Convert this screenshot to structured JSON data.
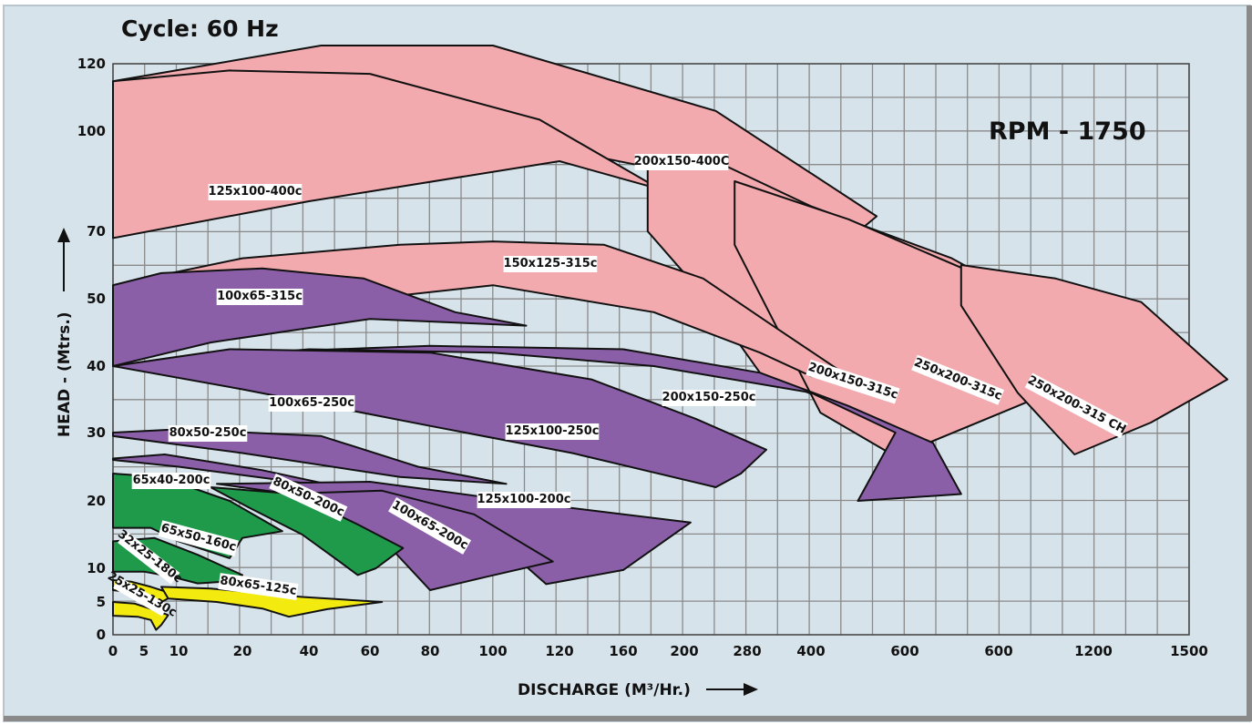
{
  "chart_data": {
    "type": "area",
    "title": "Cycle: 60 Hz",
    "annotation": "RPM - 1750",
    "xlabel": "DISCHARGE (M³/Hr.)",
    "ylabel": "HEAD - (Mtrs.)",
    "x_ticks": [
      "0",
      "5",
      "10",
      "20",
      "40",
      "60",
      "80",
      "100",
      "120",
      "160",
      "200",
      "280",
      "400",
      "600",
      "600",
      "1200",
      "1500"
    ],
    "y_ticks": [
      "0",
      "5",
      "10",
      "20",
      "30",
      "40",
      "50",
      "70",
      "100",
      "120"
    ],
    "grid": true,
    "scale_note": "non-uniform axes; data values expressed in tick-index units (x: index into x_ticks, y: index into y_ticks)",
    "colors": {
      "pink": "#f2aaae",
      "purple": "#8a5fa8",
      "green": "#1e9a4a",
      "yellow": "#f3ea10",
      "background": "#d7e3ea",
      "grid": "#8a8a8a"
    },
    "series": [
      {
        "name": "200x150-400C",
        "color": "pink",
        "points": [
          [
            0,
            8.74
          ],
          [
            4.2,
            9.27
          ],
          [
            7,
            9.27
          ],
          [
            10.5,
            8.3
          ],
          [
            12.7,
            7.15
          ],
          [
            12.1,
            6.53
          ],
          [
            9.5,
            7.63
          ],
          [
            7,
            7.95
          ],
          [
            3,
            7.85
          ],
          [
            0,
            7.1
          ]
        ]
      },
      {
        "name": "125x100-400c",
        "color": "pink",
        "points": [
          [
            0,
            8.74
          ],
          [
            2.8,
            8.9
          ],
          [
            5,
            8.85
          ],
          [
            7.7,
            8.17
          ],
          [
            9.6,
            7.42
          ],
          [
            8,
            7.7
          ],
          [
            4,
            7.3
          ],
          [
            0,
            6.9
          ]
        ]
      },
      {
        "name": "200x150-315c",
        "color": "pink",
        "points": [
          [
            9.4,
            7.7
          ],
          [
            10.5,
            7.7
          ],
          [
            12,
            7.25
          ],
          [
            13.5,
            6.6
          ],
          [
            14.8,
            5.6
          ],
          [
            13.5,
            5.1
          ],
          [
            12.4,
            4.35
          ],
          [
            11.2,
            4.9
          ],
          [
            10.4,
            5.95
          ],
          [
            9.4,
            7.0
          ]
        ]
      },
      {
        "name": "250x200-315c",
        "color": "pink",
        "points": [
          [
            10.8,
            7.5
          ],
          [
            12.4,
            7.12
          ],
          [
            14.2,
            6.1
          ],
          [
            15.5,
            5.18
          ],
          [
            14.2,
            4.4
          ],
          [
            12.9,
            3.65
          ],
          [
            12.1,
            4.3
          ],
          [
            10.8,
            6.8
          ]
        ]
      },
      {
        "name": "250x200-315 CH",
        "color": "pink",
        "points": [
          [
            13.6,
            6.5
          ],
          [
            14.6,
            6.3
          ],
          [
            15.5,
            5.95
          ],
          [
            16.4,
            4.8
          ],
          [
            15.6,
            4.15
          ],
          [
            14.8,
            3.68
          ],
          [
            14.2,
            4.6
          ],
          [
            13.6,
            5.9
          ]
        ]
      },
      {
        "name": "150x125-315c",
        "color": "pink",
        "points": [
          [
            0,
            6.2
          ],
          [
            3,
            6.6
          ],
          [
            5.5,
            6.8
          ],
          [
            7,
            6.85
          ],
          [
            8.7,
            6.8
          ],
          [
            10.3,
            6.3
          ],
          [
            11.4,
            5.6
          ],
          [
            12.5,
            4.75
          ],
          [
            12.0,
            4.85
          ],
          [
            11.2,
            5.2
          ],
          [
            9.5,
            5.8
          ],
          [
            7,
            6.2
          ],
          [
            4,
            5.9
          ],
          [
            0,
            5.05
          ]
        ]
      },
      {
        "name": "100x65-315c",
        "color": "purple",
        "points": [
          [
            0,
            6.2
          ],
          [
            1.5,
            6.38
          ],
          [
            3.3,
            6.45
          ],
          [
            4.9,
            6.3
          ],
          [
            6.4,
            5.8
          ],
          [
            7.5,
            5.6
          ],
          [
            5,
            5.7
          ],
          [
            2.5,
            5.35
          ],
          [
            0,
            5.0
          ]
        ]
      },
      {
        "name": "200x150-250c",
        "color": "purple",
        "points": [
          [
            0,
            5.0
          ],
          [
            3,
            5.2
          ],
          [
            6,
            5.3
          ],
          [
            9,
            5.25
          ],
          [
            11.2,
            4.9
          ],
          [
            12.4,
            4.4
          ],
          [
            13.3,
            3.85
          ],
          [
            13.6,
            3.1
          ],
          [
            12.5,
            3.0
          ],
          [
            12.9,
            4.0
          ],
          [
            12,
            4.6
          ],
          [
            9.5,
            5.0
          ],
          [
            7,
            5.2
          ],
          [
            4,
            5.25
          ],
          [
            0,
            5.0
          ]
        ]
      },
      {
        "name": "125x100-250c",
        "color": "purple",
        "points": [
          [
            0,
            5.0
          ],
          [
            2.8,
            5.25
          ],
          [
            6,
            5.2
          ],
          [
            8.5,
            4.8
          ],
          [
            10.2,
            4.2
          ],
          [
            11.3,
            3.75
          ],
          [
            10.9,
            3.4
          ],
          [
            10.5,
            3.2
          ],
          [
            8.2,
            3.7
          ],
          [
            6,
            4.1
          ],
          [
            3,
            4.65
          ],
          [
            0,
            5.0
          ]
        ]
      },
      {
        "name": "100x65-250c",
        "color": "purple",
        "points": [
          [
            0,
            4.0
          ],
          [
            2,
            4.05
          ],
          [
            4.2,
            3.95
          ],
          [
            5.8,
            3.5
          ],
          [
            7.2,
            3.25
          ],
          [
            5.5,
            3.35
          ],
          [
            3,
            3.7
          ],
          [
            0,
            3.95
          ]
        ]
      },
      {
        "name": "80x50-250c",
        "color": "purple",
        "points": [
          [
            0,
            3.62
          ],
          [
            1.6,
            3.68
          ],
          [
            3.3,
            3.45
          ],
          [
            4.8,
            3.15
          ],
          [
            5.5,
            3.0
          ],
          [
            4,
            3.25
          ],
          [
            2,
            3.5
          ],
          [
            0,
            3.6
          ]
        ]
      },
      {
        "name": "125x100-200c",
        "color": "purple",
        "points": [
          [
            2.6,
            3.25
          ],
          [
            5,
            3.28
          ],
          [
            7.3,
            3.0
          ],
          [
            10.1,
            2.68
          ],
          [
            9.0,
            1.95
          ],
          [
            7.8,
            1.53
          ],
          [
            7.3,
            2.2
          ],
          [
            6.5,
            2.6
          ],
          [
            4.5,
            3.0
          ],
          [
            2.6,
            3.25
          ]
        ]
      },
      {
        "name": "100x65-200c",
        "color": "purple",
        "points": [
          [
            3.5,
            3.1
          ],
          [
            5.2,
            3.15
          ],
          [
            6.7,
            2.8
          ],
          [
            7.9,
            2.1
          ],
          [
            6.9,
            1.75
          ],
          [
            6.0,
            1.35
          ],
          [
            5.4,
            2.25
          ],
          [
            4.6,
            2.65
          ],
          [
            3.5,
            3.1
          ]
        ]
      },
      {
        "name": "80x50-200c",
        "color": "green",
        "points": [
          [
            2.5,
            3.2
          ],
          [
            3.8,
            3.1
          ],
          [
            4.8,
            2.65
          ],
          [
            5.55,
            2.3
          ],
          [
            5.1,
            2.0
          ],
          [
            4.8,
            1.8
          ],
          [
            4.5,
            2.1
          ],
          [
            3.9,
            2.5
          ],
          [
            3.1,
            2.9
          ],
          [
            2.5,
            3.2
          ]
        ]
      },
      {
        "name": "65x40-200c",
        "color": "green",
        "points": [
          [
            0,
            3.4
          ],
          [
            1.5,
            3.35
          ],
          [
            2.8,
            3.0
          ],
          [
            3.6,
            2.55
          ],
          [
            3.0,
            2.45
          ],
          [
            2.8,
            2.15
          ],
          [
            2.0,
            2.4
          ],
          [
            1.2,
            2.6
          ],
          [
            0,
            2.6
          ]
        ]
      },
      {
        "name": "65x50-160c",
        "color": "green",
        "points": [
          [
            0,
            2.4
          ],
          [
            1.3,
            2.45
          ],
          [
            2.3,
            2.2
          ],
          [
            3.0,
            1.8
          ],
          [
            2.7,
            1.6
          ],
          [
            2.3,
            1.55
          ],
          [
            1.8,
            1.75
          ],
          [
            1.0,
            1.9
          ],
          [
            0,
            1.9
          ]
        ]
      },
      {
        "name": "32x25-180c",
        "color": "yellow",
        "points": [
          [
            0,
            1.65
          ],
          [
            0.6,
            1.6
          ],
          [
            1.2,
            1.45
          ],
          [
            1.9,
            1.22
          ],
          [
            1.6,
            1.05
          ],
          [
            1.4,
            0.95
          ],
          [
            1.1,
            1.15
          ],
          [
            0.5,
            1.3
          ],
          [
            0,
            1.35
          ]
        ]
      },
      {
        "name": "80x65-125c",
        "color": "yellow",
        "points": [
          [
            1.5,
            1.45
          ],
          [
            2.5,
            1.4
          ],
          [
            3.9,
            1.15
          ],
          [
            5.2,
            1.0
          ],
          [
            4.3,
            0.78
          ],
          [
            3.7,
            0.55
          ],
          [
            3.3,
            0.8
          ],
          [
            2.6,
            1.0
          ],
          [
            1.7,
            1.1
          ]
        ]
      },
      {
        "name": "25x25-130c",
        "color": "yellow",
        "points": [
          [
            0,
            1.0
          ],
          [
            0.7,
            0.95
          ],
          [
            1.4,
            0.72
          ],
          [
            1.7,
            0.6
          ],
          [
            1.5,
            0.3
          ],
          [
            1.35,
            0.15
          ],
          [
            1.2,
            0.45
          ],
          [
            0.8,
            0.55
          ],
          [
            0,
            0.58
          ]
        ]
      }
    ]
  }
}
